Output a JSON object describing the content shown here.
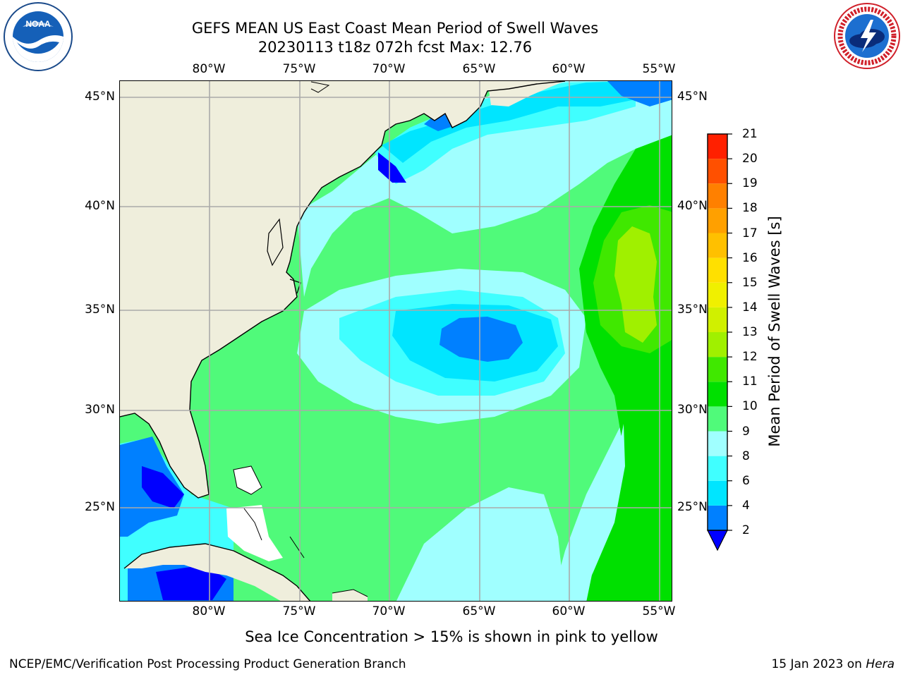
{
  "title": {
    "line1": "GEFS MEAN US East Coast Mean Period of Swell Waves",
    "line2": "20230113 t18z 072h fcst   Max: 12.76"
  },
  "axes": {
    "lon_labels": [
      "80°W",
      "75°W",
      "70°W",
      "65°W",
      "60°W",
      "55°W"
    ],
    "lat_labels": [
      "45°N",
      "40°N",
      "35°N",
      "30°N",
      "25°N"
    ]
  },
  "colorbar": {
    "title": "Mean Period of Swell Waves [s]",
    "levels": [
      "2",
      "4",
      "6",
      "8",
      "9",
      "10",
      "11",
      "12",
      "13",
      "14",
      "15",
      "16",
      "17",
      "18",
      "19",
      "20",
      "21"
    ],
    "colors": [
      "#0080ff",
      "#00e5ff",
      "#40ffff",
      "#a0ffff",
      "#50fa7a",
      "#00e000",
      "#40e800",
      "#a0f000",
      "#d0f000",
      "#f0f000",
      "#ffe000",
      "#ffc000",
      "#ffa000",
      "#ff8000",
      "#ff5000",
      "#ff2000",
      "#ff0000"
    ],
    "under_color": "#0000ff",
    "extend": "min"
  },
  "map": {
    "land_color": "#efeedc",
    "ocean_colors": {
      "period_lt_2": "#0000ff",
      "period_2_4": "#0080ff",
      "period_4_6": "#00e5ff",
      "period_6_8": "#40ffff",
      "period_8_9": "#a0ffff",
      "period_9_10": "#50fa7a",
      "period_10_11": "#00e000",
      "period_11_12": "#40e800",
      "period_12_13": "#a0f000"
    },
    "gridline_color": "#aaaaaa",
    "max_value": 12.76
  },
  "ice_note": "Sea Ice Concentration > 15% is shown in pink to yellow",
  "footer": {
    "left": "NCEP/EMC/Verification Post Processing Product Generation Branch",
    "date": "15 Jan 2023 on",
    "machine": "Hera"
  },
  "logos": {
    "noaa_text": "NOAA",
    "nws_text": "NATIONAL WEATHER SERVICE"
  }
}
